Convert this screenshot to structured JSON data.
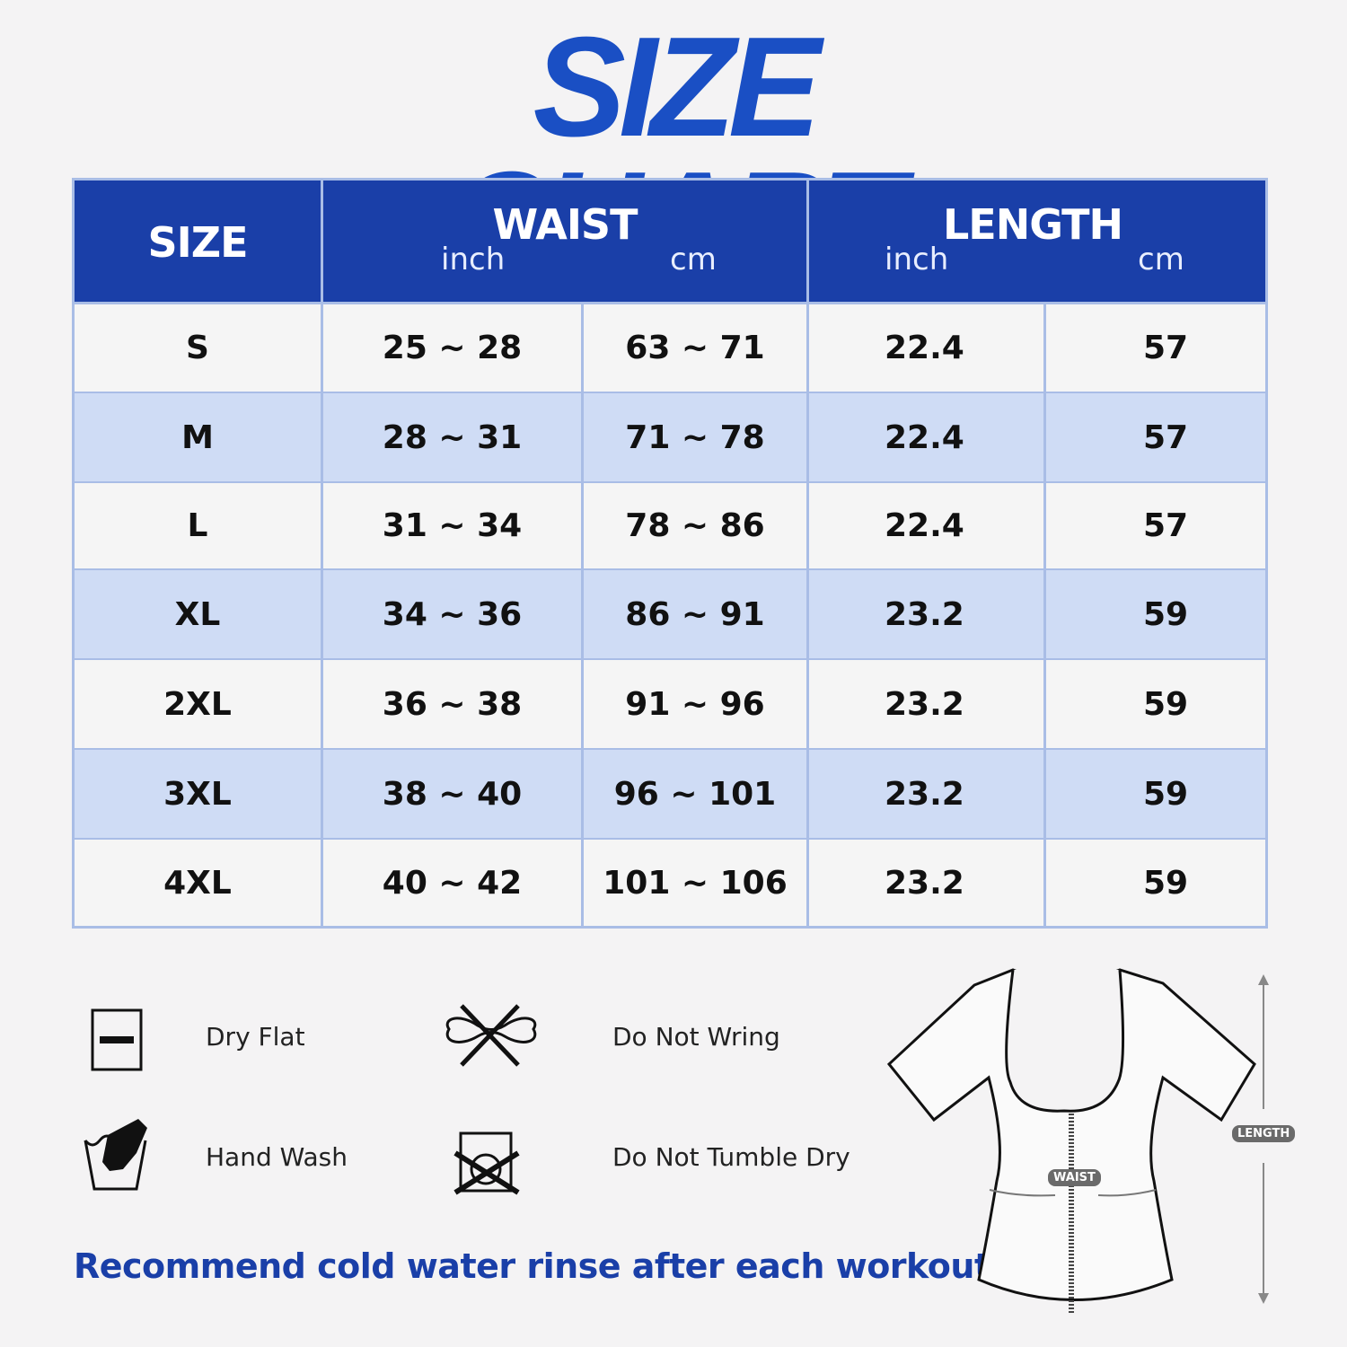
{
  "title": "SIZE CHART",
  "colors": {
    "header_bg": "#1a3fa8",
    "title": "#1a4fc4",
    "row_alt": "#cfdcf5",
    "row": "#f5f5f5",
    "border": "#a9bde6",
    "note": "#1a3fa8"
  },
  "table": {
    "headers": {
      "size": "SIZE",
      "waist": "WAIST",
      "length": "LENGTH",
      "inch": "inch",
      "cm": "cm"
    },
    "rows": [
      {
        "size": "S",
        "waist_in": "25 ~ 28",
        "waist_cm": "63 ~ 71",
        "length_in": "22.4",
        "length_cm": "57"
      },
      {
        "size": "M",
        "waist_in": "28 ~ 31",
        "waist_cm": "71 ~ 78",
        "length_in": "22.4",
        "length_cm": "57"
      },
      {
        "size": "L",
        "waist_in": "31 ~ 34",
        "waist_cm": "78 ~ 86",
        "length_in": "22.4",
        "length_cm": "57"
      },
      {
        "size": "XL",
        "waist_in": "34 ~ 36",
        "waist_cm": "86 ~ 91",
        "length_in": "23.2",
        "length_cm": "59"
      },
      {
        "size": "2XL",
        "waist_in": "36 ~ 38",
        "waist_cm": "91 ~ 96",
        "length_in": "23.2",
        "length_cm": "59"
      },
      {
        "size": "3XL",
        "waist_in": "38 ~ 40",
        "waist_cm": "96 ~ 101",
        "length_in": "23.2",
        "length_cm": "59"
      },
      {
        "size": "4XL",
        "waist_in": "40 ~ 42",
        "waist_cm": "101 ~ 106",
        "length_in": "23.2",
        "length_cm": "59"
      }
    ]
  },
  "care": [
    {
      "label": "Dry Flat",
      "icon": "dry-flat-icon"
    },
    {
      "label": "Do Not Wring",
      "icon": "do-not-wring-icon"
    },
    {
      "label": "Hand Wash",
      "icon": "hand-wash-icon"
    },
    {
      "label": "Do Not Tumble Dry",
      "icon": "do-not-tumble-dry-icon"
    }
  ],
  "diagram": {
    "waist_label": "WAIST",
    "length_label": "LENGTH"
  },
  "note": "Recommend cold water rinse after each workout."
}
